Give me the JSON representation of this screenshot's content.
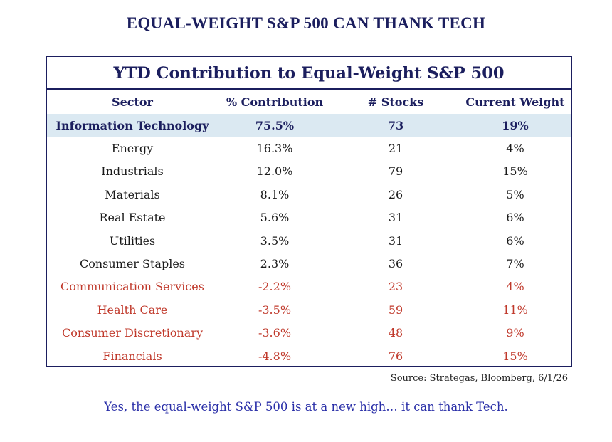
{
  "headline": "EQUAL-WEIGHT S&P 500 CAN THANK TECH",
  "chart_data": {
    "type": "table",
    "title": "YTD Contribution to Equal-Weight S&P 500",
    "columns": [
      "Sector",
      "% Contribution",
      "# Stocks",
      "Current Weight"
    ],
    "rows": [
      {
        "sector": "Information Technology",
        "contribution": "75.5%",
        "stocks": "73",
        "weight": "19%",
        "style": "highlight"
      },
      {
        "sector": "Energy",
        "contribution": "16.3%",
        "stocks": "21",
        "weight": "4%",
        "style": "normal"
      },
      {
        "sector": "Industrials",
        "contribution": "12.0%",
        "stocks": "79",
        "weight": "15%",
        "style": "normal"
      },
      {
        "sector": "Materials",
        "contribution": "8.1%",
        "stocks": "26",
        "weight": "5%",
        "style": "normal"
      },
      {
        "sector": "Real Estate",
        "contribution": "5.6%",
        "stocks": "31",
        "weight": "6%",
        "style": "normal"
      },
      {
        "sector": "Utilities",
        "contribution": "3.5%",
        "stocks": "31",
        "weight": "6%",
        "style": "normal"
      },
      {
        "sector": "Consumer Staples",
        "contribution": "2.3%",
        "stocks": "36",
        "weight": "7%",
        "style": "normal"
      },
      {
        "sector": "Communication Services",
        "contribution": "-2.2%",
        "stocks": "23",
        "weight": "4%",
        "style": "negative"
      },
      {
        "sector": "Health Care",
        "contribution": "-3.5%",
        "stocks": "59",
        "weight": "11%",
        "style": "negative"
      },
      {
        "sector": "Consumer Discretionary",
        "contribution": "-3.6%",
        "stocks": "48",
        "weight": "9%",
        "style": "negative"
      },
      {
        "sector": "Financials",
        "contribution": "-4.8%",
        "stocks": "76",
        "weight": "15%",
        "style": "negative"
      }
    ]
  },
  "source": "Source: Strategas, Bloomberg, 6/1/26",
  "caption": "Yes, the equal-weight S&P 500 is at a new high… it can thank Tech.",
  "colors": {
    "navy": "#1b1e5e",
    "highlight_bg": "#dbe9f2",
    "negative_red": "#c0392b",
    "caption_blue": "#2a2fa8"
  }
}
